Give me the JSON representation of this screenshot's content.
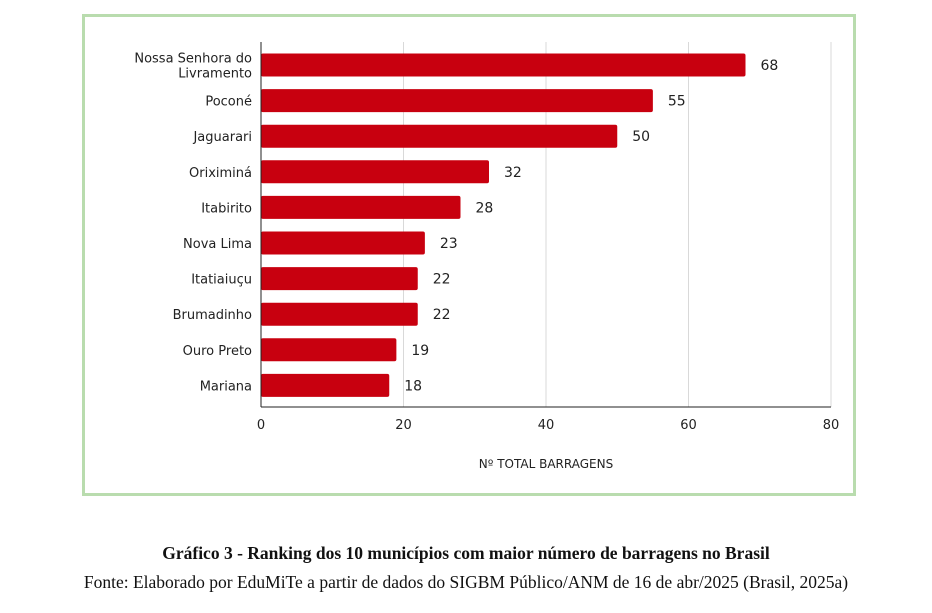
{
  "colors": {
    "bar": "#c8000f",
    "frame": "#b9dcae",
    "grid": "#d9d9d9",
    "axis": "#222222"
  },
  "chart_data": {
    "type": "bar",
    "orientation": "horizontal",
    "categories": [
      [
        "Nossa Senhora do",
        "Livramento"
      ],
      [
        "Poconé"
      ],
      [
        "Jaguarari"
      ],
      [
        "Oriximiná"
      ],
      [
        "Itabirito"
      ],
      [
        "Nova Lima"
      ],
      [
        "Itatiaiuçu"
      ],
      [
        "Brumadinho"
      ],
      [
        "Ouro Preto"
      ],
      [
        "Mariana"
      ]
    ],
    "values": [
      68,
      55,
      50,
      32,
      28,
      23,
      22,
      22,
      19,
      18
    ],
    "xlabel": "Nº TOTAL BARRAGENS",
    "xlim": [
      0,
      80
    ],
    "xticks": [
      0,
      20,
      40,
      60,
      80
    ],
    "grid": "vertical",
    "data_labels": true
  },
  "caption": {
    "title": "Gráfico 3 - Ranking dos 10 municípios  com maior número de barragens no Brasil",
    "source": "Fonte: Elaborado por EduMiTe a partir de dados do SIGBM Público/ANM de 16 de abr/2025 (Brasil, 2025a)"
  }
}
